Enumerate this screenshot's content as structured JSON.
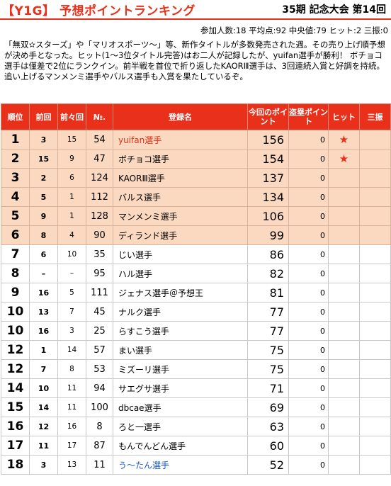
{
  "header": {
    "title": "【Y1G】 予想ポイントランキング",
    "session": "35期 記念大会 第14回"
  },
  "stats": "参加人数:18 平均点:92 中央値:79 ヒット:2 三振:0",
  "description": "「無双✫スターズ」や「マリオスポーツ〜」等、新作タイトルが多数発売された週。その売り上げ順予想が決め手となった。ヒット(1〜3位タイトル完答)はお二人が記録したが、yuifan選手が勝利！ ボチョコ選手は僅差で2位にランクイン。前半戦を首位で折り返したKAORⅢ選手は、3回連続入賞と好調を持続。追い上げるマンメンミ選手やバルス選手も入賞を果たしているぞ。",
  "columns": [
    "順位",
    "前回",
    "前々回",
    "№.",
    "登録名",
    "今回のポイント",
    "盗塁ポイント",
    "ヒット",
    "三振"
  ],
  "hit_icon": "star-icon",
  "rows": [
    {
      "rank": "1",
      "prev": "3",
      "prev2": "15",
      "no": "54",
      "name": "yuifan選手",
      "points": "156",
      "steal": "0",
      "hit": "★",
      "k": "",
      "hl": true,
      "color": "red"
    },
    {
      "rank": "2",
      "prev": "15",
      "prev2": "9",
      "no": "47",
      "name": "ボチョコ選手",
      "points": "154",
      "steal": "0",
      "hit": "★",
      "k": "",
      "hl": true,
      "color": ""
    },
    {
      "rank": "3",
      "prev": "2",
      "prev2": "6",
      "no": "124",
      "name": "KAORⅢ選手",
      "points": "137",
      "steal": "0",
      "hit": "",
      "k": "",
      "hl": true,
      "color": ""
    },
    {
      "rank": "4",
      "prev": "5",
      "prev2": "1",
      "no": "112",
      "name": "バルス選手",
      "points": "134",
      "steal": "0",
      "hit": "",
      "k": "",
      "hl": true,
      "color": ""
    },
    {
      "rank": "5",
      "prev": "9",
      "prev2": "1",
      "no": "128",
      "name": "マンメンミ選手",
      "points": "106",
      "steal": "0",
      "hit": "",
      "k": "",
      "hl": true,
      "color": ""
    },
    {
      "rank": "6",
      "prev": "8",
      "prev2": "4",
      "no": "90",
      "name": "ディランド選手",
      "points": "99",
      "steal": "0",
      "hit": "",
      "k": "",
      "hl": true,
      "color": ""
    },
    {
      "rank": "7",
      "prev": "6",
      "prev2": "10",
      "no": "35",
      "name": "じい選手",
      "points": "86",
      "steal": "0",
      "hit": "",
      "k": "",
      "hl": false,
      "color": ""
    },
    {
      "rank": "8",
      "prev": "–",
      "prev2": "–",
      "no": "95",
      "name": "ハル選手",
      "points": "82",
      "steal": "0",
      "hit": "",
      "k": "",
      "hl": false,
      "color": ""
    },
    {
      "rank": "9",
      "prev": "16",
      "prev2": "5",
      "no": "111",
      "name": "ジェナス選手＠予想王",
      "points": "81",
      "steal": "0",
      "hit": "",
      "k": "",
      "hl": false,
      "color": ""
    },
    {
      "rank": "10",
      "prev": "13",
      "prev2": "7",
      "no": "45",
      "name": "ナルク選手",
      "points": "77",
      "steal": "0",
      "hit": "",
      "k": "",
      "hl": false,
      "color": ""
    },
    {
      "rank": "10",
      "prev": "16",
      "prev2": "3",
      "no": "25",
      "name": "らすこう選手",
      "points": "77",
      "steal": "0",
      "hit": "",
      "k": "",
      "hl": false,
      "color": ""
    },
    {
      "rank": "12",
      "prev": "1",
      "prev2": "14",
      "no": "57",
      "name": "まい選手",
      "points": "75",
      "steal": "0",
      "hit": "",
      "k": "",
      "hl": false,
      "color": ""
    },
    {
      "rank": "12",
      "prev": "7",
      "prev2": "8",
      "no": "53",
      "name": "ミズーリ選手",
      "points": "75",
      "steal": "0",
      "hit": "",
      "k": "",
      "hl": false,
      "color": ""
    },
    {
      "rank": "14",
      "prev": "10",
      "prev2": "11",
      "no": "94",
      "name": "サエグサ選手",
      "points": "71",
      "steal": "0",
      "hit": "",
      "k": "",
      "hl": false,
      "color": ""
    },
    {
      "rank": "15",
      "prev": "14",
      "prev2": "11",
      "no": "100",
      "name": "dbcae選手",
      "points": "69",
      "steal": "0",
      "hit": "",
      "k": "",
      "hl": false,
      "color": ""
    },
    {
      "rank": "16",
      "prev": "12",
      "prev2": "16",
      "no": "8",
      "name": "ろと一選手",
      "points": "63",
      "steal": "0",
      "hit": "",
      "k": "",
      "hl": false,
      "color": ""
    },
    {
      "rank": "17",
      "prev": "11",
      "prev2": "17",
      "no": "87",
      "name": "もんでんどん選手",
      "points": "60",
      "steal": "0",
      "hit": "",
      "k": "",
      "hl": false,
      "color": ""
    },
    {
      "rank": "18",
      "prev": "3",
      "prev2": "13",
      "no": "11",
      "name": "う〜たん選手",
      "points": "52",
      "steal": "0",
      "hit": "",
      "k": "",
      "hl": false,
      "color": "blue"
    }
  ]
}
